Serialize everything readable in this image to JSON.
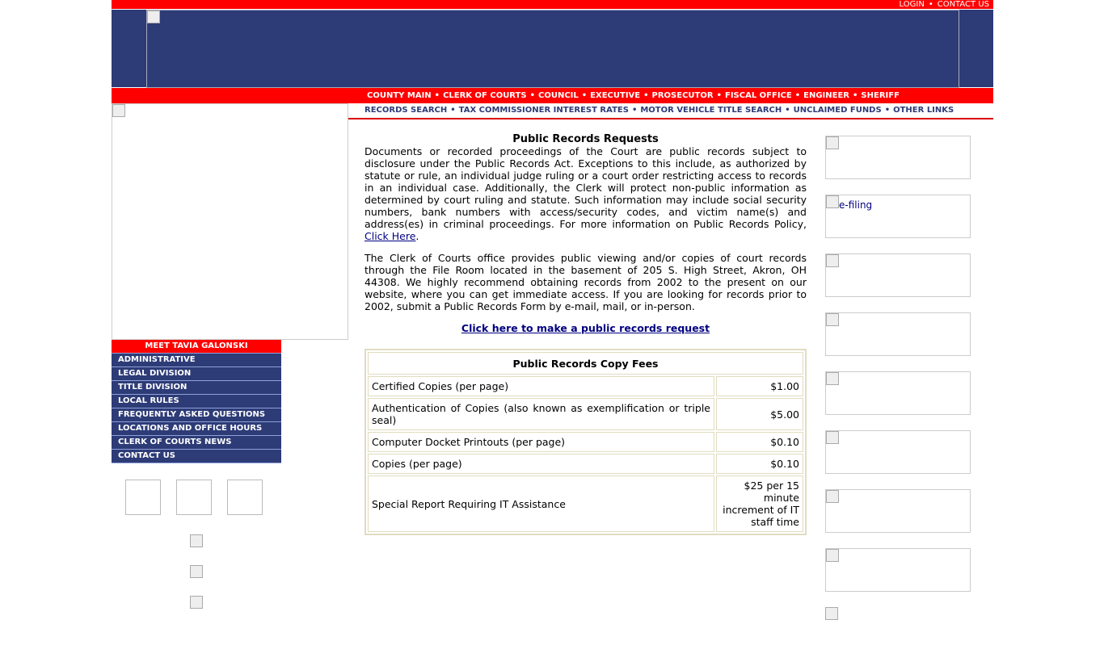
{
  "top": {
    "login": "LOGIN",
    "contact": "CONTACT US"
  },
  "nav1": [
    "COUNTY MAIN",
    "CLERK OF COURTS",
    "COUNCIL",
    "EXECUTIVE",
    "PROSECUTOR",
    "FISCAL OFFICE",
    "ENGINEER",
    "SHERIFF"
  ],
  "nav2": [
    "RECORDS SEARCH",
    "TAX COMMISSIONER INTEREST RATES",
    "MOTOR VEHICLE TITLE SEARCH",
    "UNCLAIMED FUNDS",
    "OTHER LINKS"
  ],
  "menu": [
    "MEET TAVIA GALONSKI",
    "ADMINISTRATIVE",
    "LEGAL DIVISION",
    "TITLE DIVISION",
    "LOCAL RULES",
    "FREQUENTLY ASKED QUESTIONS",
    "LOCATIONS AND OFFICE HOURS",
    "CLERK OF COURTS NEWS",
    "CONTACT US"
  ],
  "main": {
    "title": "Public Records Requests",
    "p1": "Documents or recorded proceedings of the Court are public records subject to disclosure under the Public Records Act. Exceptions to this include, as authorized by statute or rule, an individual judge ruling or a court order restricting access to records in an individual case. Additionally, the Clerk will protect non-public information as determined by court ruling and statute. Such information may include social security numbers, bank numbers with access/security codes, and victim name(s) and address(es) in criminal proceedings. For more information on Public Records Policy, ",
    "p1_link": "Click Here",
    "p2": "The Clerk of Courts office provides public viewing and/or copies of court records through the File Room located in the basement of 205 S. High Street, Akron, OH 44308. We highly recommend obtaining records from 2002 to the present on our website, where you can get immediate access. If you are looking for records prior to 2002, submit a Public Records Form by e-mail, mail, or in-person.",
    "request_link": "Click here to make a public records request",
    "table_title": "Public Records Copy Fees",
    "rows": [
      {
        "item": "Certified Copies (per page)",
        "fee": "$1.00"
      },
      {
        "item": "Authentication of Copies (also known as exemplification or triple seal)",
        "fee": "$5.00"
      },
      {
        "item": "Computer Docket Printouts (per page)",
        "fee": "$0.10"
      },
      {
        "item": "Copies (per page)",
        "fee": "$0.10"
      },
      {
        "item": "Special Report Requiring IT Assistance",
        "fee": "$25 per 15 minute increment of IT staff time"
      }
    ]
  },
  "right": {
    "efiling_alt": "e-filing"
  }
}
